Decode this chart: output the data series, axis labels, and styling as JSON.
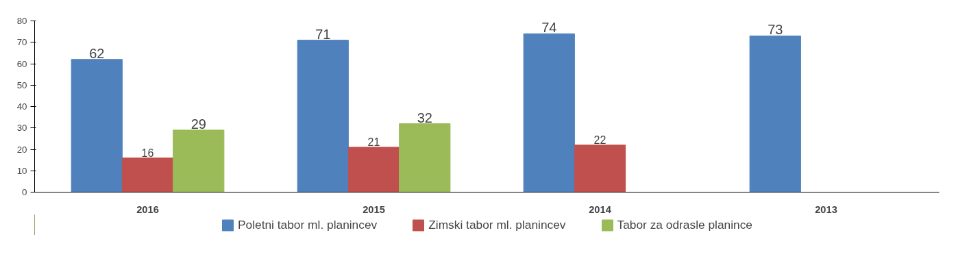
{
  "chart_data": {
    "type": "bar",
    "categories": [
      "2016",
      "2015",
      "2014",
      "2013"
    ],
    "series": [
      {
        "name": "Poletni tabor ml. planincev",
        "color": "#4f81bd",
        "values": [
          62,
          71,
          74,
          73
        ]
      },
      {
        "name": "Zimski tabor ml. planincev",
        "color": "#c0504d",
        "values": [
          16,
          21,
          22,
          null
        ]
      },
      {
        "name": "Tabor za odrasle planince",
        "color": "#9bbb59",
        "values": [
          29,
          32,
          null,
          null
        ]
      }
    ],
    "ylim": [
      0,
      80
    ],
    "yticks": [
      0,
      10,
      20,
      30,
      40,
      50,
      60,
      70,
      80
    ],
    "grid": false,
    "legend": "bottom",
    "data_labels": true
  }
}
